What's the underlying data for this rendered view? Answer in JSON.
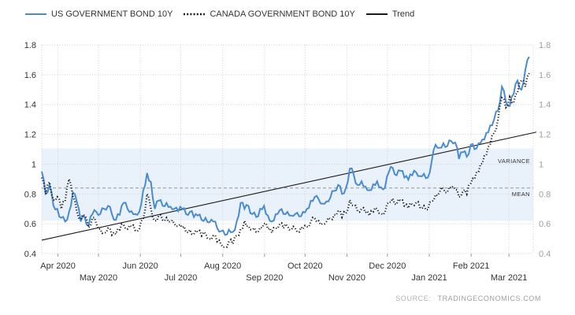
{
  "legend": {
    "us_label": "US GOVERNMENT BOND 10Y",
    "canada_label": "CANADA GOVERNMENT BOND 10Y",
    "trend_label": "Trend"
  },
  "source": {
    "label": "SOURCE:",
    "domain": "TRADINGECONOMICS.COM"
  },
  "chart_data": {
    "type": "line",
    "title": "",
    "xlabel": "",
    "ylabel": "",
    "ylim": [
      0.4,
      1.8
    ],
    "y_ticks": [
      0.4,
      0.6,
      0.8,
      1,
      1.2,
      1.4,
      1.6,
      1.8
    ],
    "x_domain_days": 364,
    "x_ticks": [
      {
        "day": 12,
        "label": "Apr 2020",
        "row": 1
      },
      {
        "day": 42,
        "label": "May 2020",
        "row": 2
      },
      {
        "day": 73,
        "label": "Jun 2020",
        "row": 1
      },
      {
        "day": 103,
        "label": "Jul 2020",
        "row": 2
      },
      {
        "day": 134,
        "label": "Aug 2020",
        "row": 1
      },
      {
        "day": 165,
        "label": "Sep 2020",
        "row": 2
      },
      {
        "day": 195,
        "label": "Oct 2020",
        "row": 1
      },
      {
        "day": 226,
        "label": "Nov 2020",
        "row": 2
      },
      {
        "day": 256,
        "label": "Dec 2020",
        "row": 1
      },
      {
        "day": 287,
        "label": "Jan 2021",
        "row": 2
      },
      {
        "day": 318,
        "label": "Feb 2021",
        "row": 1
      },
      {
        "day": 346,
        "label": "Mar 2021",
        "row": 2
      }
    ],
    "grid": true,
    "legend_position": "top-left",
    "variance_band": {
      "label": "VARIANCE",
      "from": 0.62,
      "to": 1.105,
      "color": "#e9f1fa"
    },
    "mean_line": {
      "label": "MEAN",
      "value": 0.84,
      "color": "#959595"
    },
    "trend": {
      "name": "Trend",
      "start_value": 0.49,
      "end_value": 1.215,
      "color": "#1a1a1a"
    },
    "series": [
      {
        "name": "US GOVERNMENT BOND 10Y",
        "color": "#4a8bd0",
        "style": "solid",
        "start_day": 0,
        "end_day": 361,
        "values": [
          0.95,
          0.8,
          0.86,
          0.72,
          0.7,
          0.64,
          0.615,
          0.68,
          0.81,
          0.745,
          0.615,
          0.645,
          0.585,
          0.665,
          0.68,
          0.665,
          0.7,
          0.72,
          0.665,
          0.625,
          0.66,
          0.74,
          0.7,
          0.685,
          0.665,
          0.68,
          0.82,
          0.94,
          0.88,
          0.7,
          0.755,
          0.72,
          0.74,
          0.715,
          0.7,
          0.685,
          0.7,
          0.665,
          0.68,
          0.645,
          0.655,
          0.625,
          0.64,
          0.61,
          0.615,
          0.57,
          0.55,
          0.525,
          0.56,
          0.545,
          0.615,
          0.74,
          0.7,
          0.72,
          0.665,
          0.645,
          0.7,
          0.72,
          0.655,
          0.615,
          0.665,
          0.69,
          0.665,
          0.68,
          0.655,
          0.665,
          0.65,
          0.68,
          0.7,
          0.755,
          0.78,
          0.765,
          0.735,
          0.75,
          0.775,
          0.82,
          0.86,
          0.8,
          0.84,
          0.97,
          0.93,
          0.86,
          0.885,
          0.85,
          0.825,
          0.865,
          0.885,
          0.845,
          0.84,
          0.945,
          0.975,
          0.925,
          0.955,
          0.91,
          0.895,
          0.925,
          0.945,
          0.92,
          0.935,
          0.91,
          1.02,
          1.13,
          1.11,
          1.14,
          1.12,
          1.155,
          1.145,
          1.035,
          1.08,
          1.05,
          1.13,
          1.1,
          1.14,
          1.165,
          1.21,
          1.26,
          1.3,
          1.36,
          1.52,
          1.42,
          1.39,
          1.47,
          1.56,
          1.5,
          1.63,
          1.72
        ]
      },
      {
        "name": "CANADA GOVERNMENT BOND 10Y",
        "color": "#141414",
        "style": "dotted",
        "start_day": 0,
        "end_day": 361,
        "values": [
          0.91,
          0.8,
          0.88,
          0.76,
          0.78,
          0.7,
          0.75,
          0.9,
          0.78,
          0.68,
          0.63,
          0.655,
          0.575,
          0.64,
          0.6,
          0.565,
          0.54,
          0.57,
          0.525,
          0.53,
          0.56,
          0.59,
          0.565,
          0.58,
          0.555,
          0.565,
          0.63,
          0.8,
          0.7,
          0.62,
          0.655,
          0.625,
          0.64,
          0.615,
          0.6,
          0.585,
          0.575,
          0.545,
          0.56,
          0.53,
          0.545,
          0.52,
          0.535,
          0.5,
          0.52,
          0.48,
          0.46,
          0.445,
          0.48,
          0.465,
          0.52,
          0.565,
          0.62,
          0.585,
          0.56,
          0.545,
          0.575,
          0.6,
          0.565,
          0.54,
          0.57,
          0.595,
          0.57,
          0.585,
          0.56,
          0.57,
          0.545,
          0.565,
          0.58,
          0.615,
          0.635,
          0.62,
          0.6,
          0.615,
          0.63,
          0.66,
          0.685,
          0.645,
          0.67,
          0.76,
          0.72,
          0.685,
          0.7,
          0.675,
          0.655,
          0.68,
          0.7,
          0.67,
          0.675,
          0.745,
          0.77,
          0.73,
          0.755,
          0.72,
          0.705,
          0.73,
          0.74,
          0.71,
          0.72,
          0.695,
          0.75,
          0.795,
          0.81,
          0.835,
          0.81,
          0.84,
          0.83,
          0.78,
          0.82,
          0.8,
          0.87,
          0.9,
          0.95,
          1.005,
          1.06,
          1.13,
          1.21,
          1.3,
          1.445,
          1.38,
          1.45,
          1.41,
          1.48,
          1.56,
          1.52,
          1.61
        ]
      }
    ]
  }
}
